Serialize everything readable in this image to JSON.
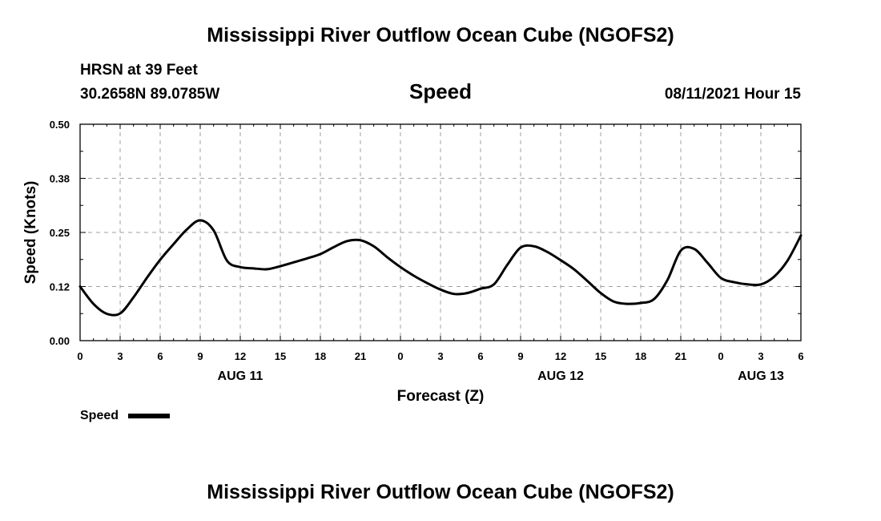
{
  "page": {
    "title_top": "Mississippi River Outflow Ocean Cube (NGOFS2)",
    "title_bottom": "Mississippi River Outflow Ocean Cube (NGOFS2)",
    "station": "HRSN at 39 Feet",
    "coords": "30.2658N  89.0785W",
    "chart_title": "Speed",
    "timestamp": "08/11/2021 Hour 15"
  },
  "legend": {
    "label": "Speed"
  },
  "chart_data": {
    "type": "line",
    "title": "Speed",
    "xlabel": "Forecast (Z)",
    "ylabel": "Speed (Knots)",
    "xlim": [
      0,
      54
    ],
    "ylim": [
      0,
      0.5
    ],
    "x_ticks": [
      0,
      3,
      6,
      9,
      12,
      15,
      18,
      21,
      24,
      27,
      30,
      33,
      36,
      39,
      42,
      45,
      48,
      51,
      54
    ],
    "x_tick_labels": [
      "0",
      "3",
      "6",
      "9",
      "12",
      "15",
      "18",
      "21",
      "0",
      "3",
      "6",
      "9",
      "12",
      "15",
      "18",
      "21",
      "0",
      "3",
      "6"
    ],
    "y_ticks": [
      0,
      0.125,
      0.25,
      0.375,
      0.5
    ],
    "y_tick_labels": [
      "0.00",
      "0.12",
      "0.25",
      "0.38",
      "0.50"
    ],
    "day_labels": [
      {
        "x": 12,
        "label": "AUG 11"
      },
      {
        "x": 36,
        "label": "AUG 12"
      },
      {
        "x": 51,
        "label": "AUG 13"
      }
    ],
    "grid": true,
    "series": [
      {
        "name": "Speed",
        "color": "#000000",
        "x": [
          0,
          1,
          2,
          3,
          4,
          5,
          6,
          7,
          8,
          9,
          10,
          11,
          12,
          13,
          14,
          15,
          16,
          17,
          18,
          19,
          20,
          21,
          22,
          23,
          24,
          25,
          26,
          27,
          28,
          29,
          30,
          31,
          32,
          33,
          34,
          35,
          36,
          37,
          38,
          39,
          40,
          41,
          42,
          43,
          44,
          45,
          46,
          47,
          48,
          49,
          50,
          51,
          52,
          53,
          54
        ],
        "values": [
          0.125,
          0.085,
          0.062,
          0.063,
          0.1,
          0.145,
          0.187,
          0.223,
          0.257,
          0.278,
          0.255,
          0.185,
          0.17,
          0.167,
          0.165,
          0.172,
          0.181,
          0.19,
          0.2,
          0.216,
          0.23,
          0.232,
          0.218,
          0.193,
          0.17,
          0.15,
          0.133,
          0.118,
          0.108,
          0.11,
          0.12,
          0.13,
          0.175,
          0.215,
          0.218,
          0.205,
          0.186,
          0.165,
          0.138,
          0.11,
          0.09,
          0.085,
          0.087,
          0.096,
          0.14,
          0.208,
          0.212,
          0.18,
          0.145,
          0.135,
          0.13,
          0.13,
          0.148,
          0.185,
          0.243
        ]
      }
    ]
  }
}
